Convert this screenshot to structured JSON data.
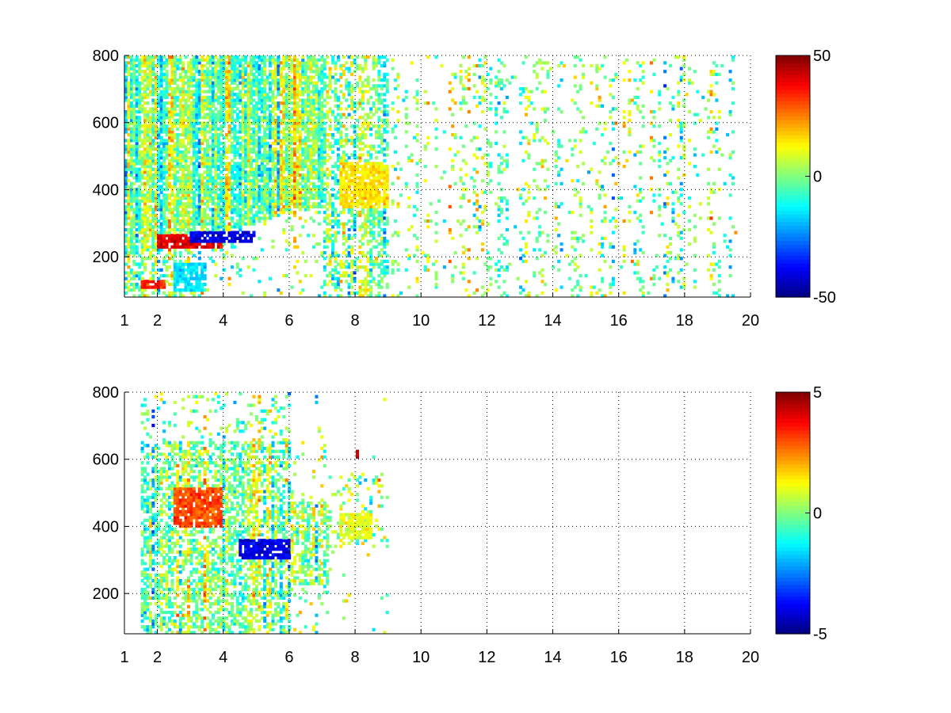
{
  "chart_data": [
    {
      "type": "heatmap",
      "title": "",
      "xlabel": "",
      "ylabel": "",
      "xlim": [
        1,
        20
      ],
      "ylim": [
        80,
        800
      ],
      "x_ticks": [
        1,
        2,
        4,
        6,
        8,
        10,
        12,
        14,
        16,
        18,
        20
      ],
      "x_tick_labels": [
        "1",
        "2",
        "4",
        "6",
        "8",
        "10",
        "12",
        "14",
        "16",
        "18",
        "20"
      ],
      "y_ticks": [
        200,
        400,
        600,
        800
      ],
      "y_tick_labels": [
        "200",
        "400",
        "600",
        "800"
      ],
      "grid": true,
      "colormap": "jet",
      "clim": [
        -50,
        50
      ],
      "colorbar": {
        "ticks": [
          -50,
          0,
          50
        ],
        "tick_labels": [
          "-50",
          "0",
          "50"
        ]
      },
      "data_extent_x": [
        1,
        19.6
      ],
      "features": [
        {
          "x": [
            2,
            4
          ],
          "y": [
            230,
            270
          ],
          "value": 40
        },
        {
          "x": [
            3,
            5
          ],
          "y": [
            240,
            280
          ],
          "value": -40
        },
        {
          "x": [
            1.5,
            2.2
          ],
          "y": [
            110,
            130
          ],
          "value": 35
        },
        {
          "x": [
            2.5,
            3.5
          ],
          "y": [
            100,
            180
          ],
          "value": -15
        },
        {
          "x": [
            7.5,
            9
          ],
          "y": [
            350,
            480
          ],
          "value": 15
        }
      ]
    },
    {
      "type": "heatmap",
      "title": "",
      "xlabel": "",
      "ylabel": "",
      "xlim": [
        1,
        20
      ],
      "ylim": [
        80,
        800
      ],
      "x_ticks": [
        1,
        2,
        4,
        6,
        8,
        10,
        12,
        14,
        16,
        18,
        20
      ],
      "x_tick_labels": [
        "1",
        "2",
        "4",
        "6",
        "8",
        "10",
        "12",
        "14",
        "16",
        "18",
        "20"
      ],
      "y_ticks": [
        200,
        400,
        600,
        800
      ],
      "y_tick_labels": [
        "200",
        "400",
        "600",
        "800"
      ],
      "grid": true,
      "colormap": "jet",
      "clim": [
        -5,
        5
      ],
      "colorbar": {
        "ticks": [
          -5,
          0,
          5
        ],
        "tick_labels": [
          "-5",
          "0",
          "5"
        ]
      },
      "data_extent_x": [
        1.5,
        9
      ],
      "features": [
        {
          "x": [
            2.5,
            4
          ],
          "y": [
            400,
            520
          ],
          "value": 3
        },
        {
          "x": [
            4.5,
            6
          ],
          "y": [
            300,
            360
          ],
          "value": -4
        },
        {
          "x": [
            7.5,
            8.5
          ],
          "y": [
            360,
            440
          ],
          "value": 1
        },
        {
          "x": [
            8,
            8.1
          ],
          "y": [
            600,
            630
          ],
          "value": 4
        }
      ]
    }
  ]
}
